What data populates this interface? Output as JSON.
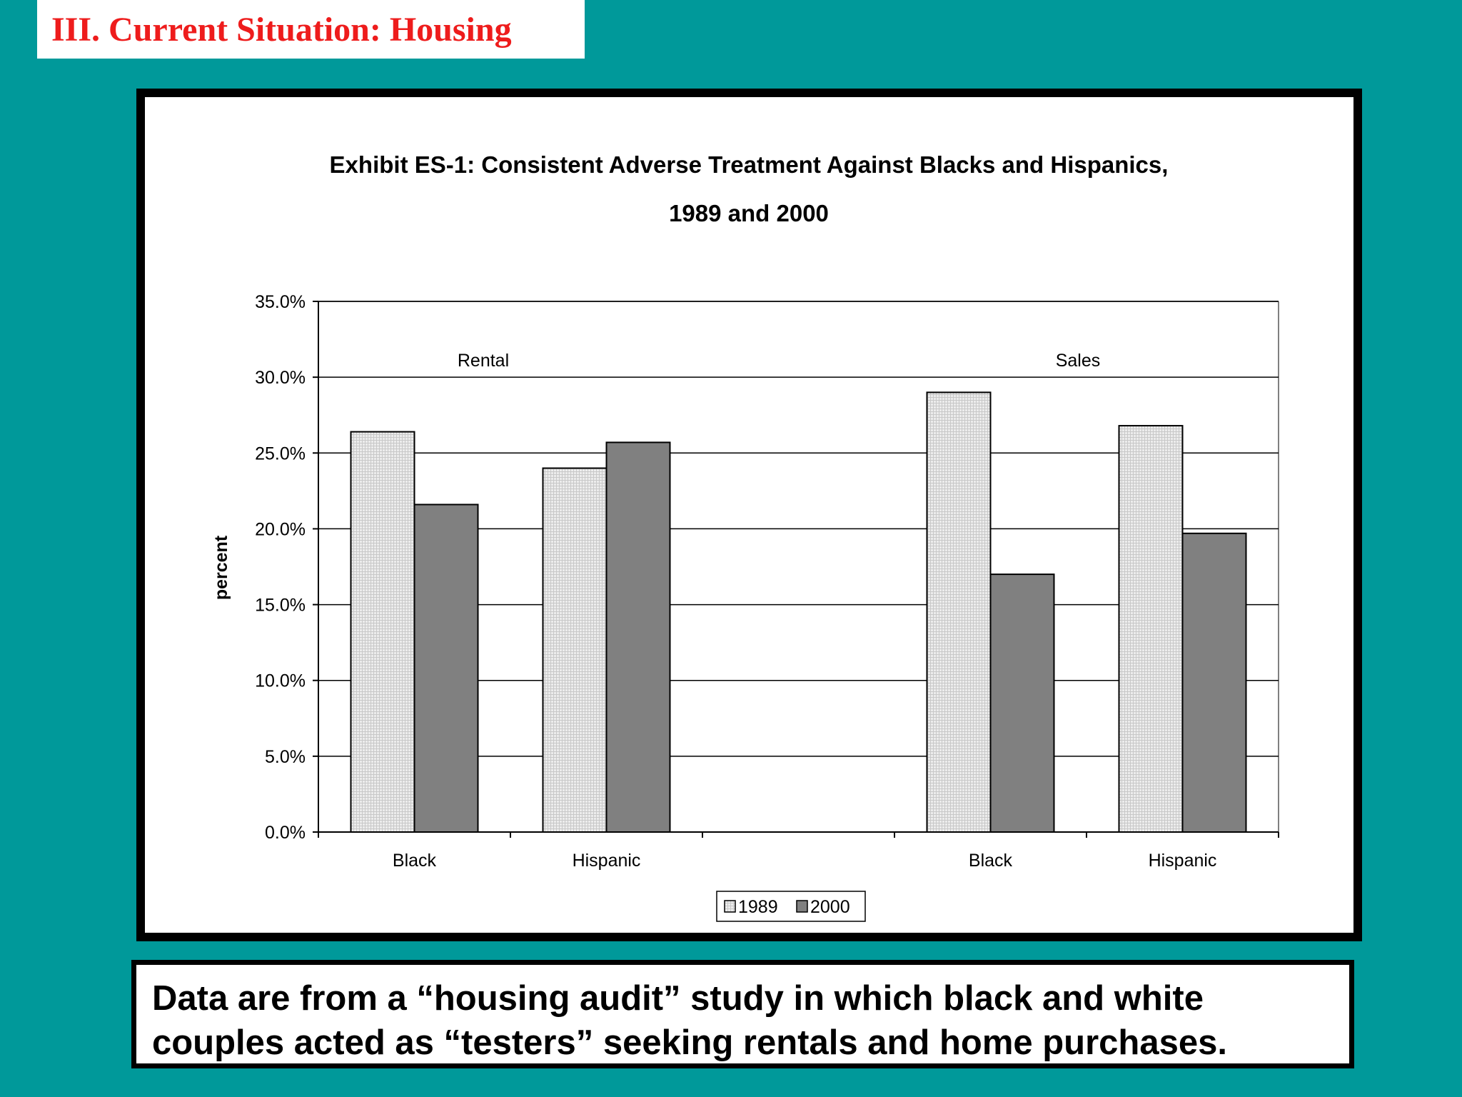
{
  "slide": {
    "title": "III. Current Situation: Housing",
    "caption": "Data are from a “housing audit” study in which black and white couples acted as “testers” seeking rentals and home purchases."
  },
  "colors": {
    "background": "#00999a",
    "title": "#ee1c1c",
    "series_1989": "#e6e6e6",
    "series_2000": "#808080"
  },
  "chart_data": {
    "type": "bar",
    "title_lines": [
      "Exhibit ES-1: Consistent Adverse Treatment Against Blacks and Hispanics,",
      "1989 and 2000"
    ],
    "ylabel": "percent",
    "ylim": [
      0,
      35
    ],
    "yticks": [
      "0.0%",
      "5.0%",
      "10.0%",
      "15.0%",
      "20.0%",
      "25.0%",
      "30.0%",
      "35.0%"
    ],
    "groups": [
      "Rental",
      "Sales"
    ],
    "categories": [
      "Black",
      "Hispanic",
      "",
      "Black",
      "Hispanic"
    ],
    "series": [
      {
        "name": "1989",
        "values": [
          26.4,
          24.0,
          null,
          29.0,
          26.8
        ]
      },
      {
        "name": "2000",
        "values": [
          21.6,
          25.7,
          null,
          17.0,
          19.7
        ]
      }
    ],
    "grid": true,
    "legend": "bottom-center"
  }
}
